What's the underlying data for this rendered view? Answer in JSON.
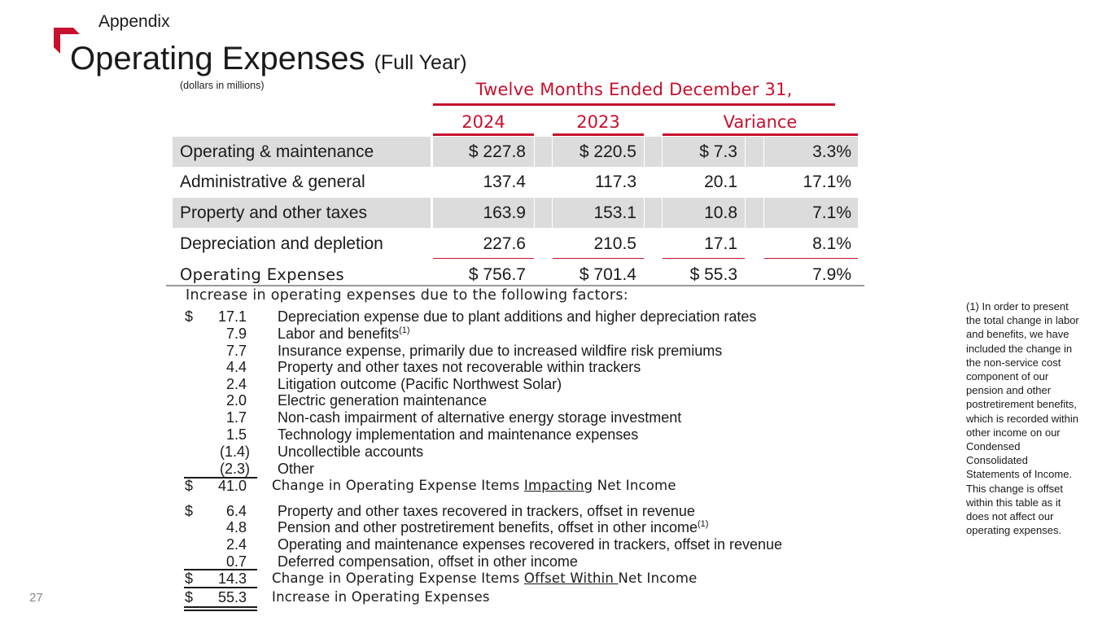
{
  "header": {
    "section": "Appendix",
    "title": "Operating Expenses",
    "title_sub": "(Full Year)",
    "units": "(dollars in millions)",
    "brand_color": "#c8102e"
  },
  "table": {
    "period": "Twelve Months Ended December 31,",
    "columns": [
      "2024",
      "2023",
      "Variance"
    ],
    "rows": [
      {
        "label": "Operating & maintenance",
        "y2024": "$ 227.8",
        "y2023": "$ 220.5",
        "var_amt": "$ 7.3",
        "var_pct": "3.3%"
      },
      {
        "label": "Administrative & general",
        "y2024": "137.4",
        "y2023": "117.3",
        "var_amt": "20.1",
        "var_pct": "17.1%"
      },
      {
        "label": "Property and other taxes",
        "y2024": "163.9",
        "y2023": "153.1",
        "var_amt": "10.8",
        "var_pct": "7.1%"
      },
      {
        "label": "Depreciation and depletion",
        "y2024": "227.6",
        "y2023": "210.5",
        "var_amt": "17.1",
        "var_pct": "8.1%"
      }
    ],
    "total": {
      "label": "Operating Expenses",
      "y2024": "$ 756.7",
      "y2023": "$ 701.4",
      "var_amt": "$ 55.3",
      "var_pct": "7.9%"
    }
  },
  "factors": {
    "heading": "Increase in operating expenses due to the following factors:",
    "currency": "$",
    "impacting": [
      {
        "amount": "17.1",
        "desc": "Depreciation expense due to plant additions and higher depreciation rates"
      },
      {
        "amount": "7.9",
        "desc": "Labor and benefits",
        "sup": "(1)"
      },
      {
        "amount": "7.7",
        "desc": "Insurance expense, primarily due to increased wildfire risk premiums"
      },
      {
        "amount": "4.4",
        "desc": "Property and other taxes not recoverable within trackers"
      },
      {
        "amount": "2.4",
        "desc": "Litigation outcome (Pacific Northwest Solar)"
      },
      {
        "amount": "2.0",
        "desc": "Electric generation maintenance"
      },
      {
        "amount": "1.7",
        "desc": "Non-cash impairment of alternative energy storage investment"
      },
      {
        "amount": "1.5",
        "desc": "Technology implementation and maintenance expenses"
      },
      {
        "amount": "(1.4)",
        "desc": "Uncollectible accounts"
      },
      {
        "amount": "(2.3)",
        "desc": "Other"
      }
    ],
    "impacting_subtotal": {
      "amount": "41.0",
      "pre": "Change in Operating Expense Items ",
      "emph": "Impacting",
      "post": " Net Income"
    },
    "offset": [
      {
        "amount": "6.4",
        "desc": "Property and other taxes recovered in trackers, offset in revenue"
      },
      {
        "amount": "4.8",
        "desc": "Pension and other postretirement benefits, offset in other income",
        "sup": "(1)"
      },
      {
        "amount": "2.4",
        "desc": "Operating and maintenance expenses recovered in trackers, offset in revenue"
      },
      {
        "amount": "0.7",
        "desc": "Deferred compensation, offset in other income"
      }
    ],
    "offset_subtotal": {
      "amount": "14.3",
      "pre": "Change in Operating Expense Items ",
      "emph": "Offset Within ",
      "post": "Net Income"
    },
    "grand_total": {
      "amount": "55.3",
      "label": "Increase in Operating Expenses"
    }
  },
  "footnote": "(1) In order to present the total change in labor and benefits, we have included the change in the non-service cost component of our pension and other postretirement benefits, which is recorded within other income on our Condensed Consolidated Statements of Income. This change is offset within this table as it does not affect our operating expenses.",
  "page_number": "27"
}
